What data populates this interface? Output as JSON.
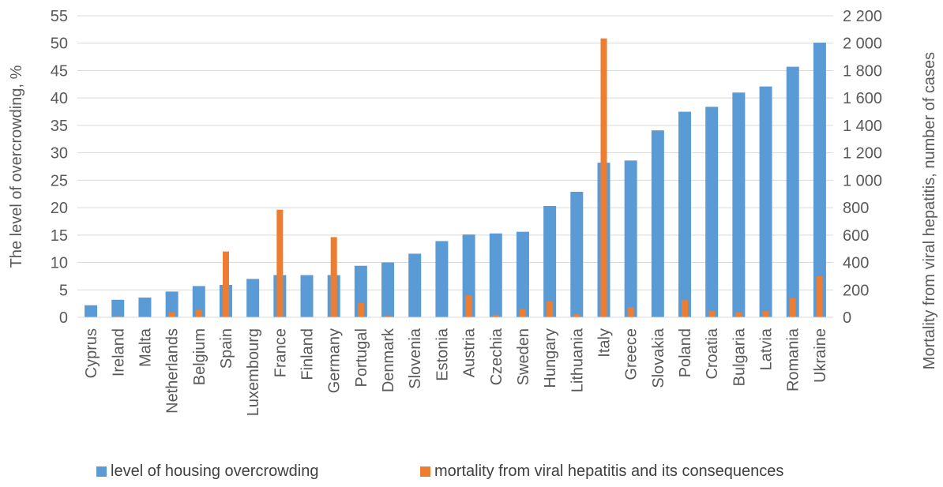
{
  "chart_data": {
    "type": "bar",
    "categories": [
      "Cyprus",
      "Ireland",
      "Malta",
      "Netherlands",
      "Belgium",
      "Spain",
      "Luxembourg",
      "France",
      "Finland",
      "Germany",
      "Portugal",
      "Denmark",
      "Slovenia",
      "Estonia",
      "Austria",
      "Czechia",
      "Sweden",
      "Hungary",
      "Lithuania",
      "Italy",
      "Greece",
      "Slovakia",
      "Poland",
      "Croatia",
      "Bulgaria",
      "Latvia",
      "Romania",
      "Ukraine"
    ],
    "series": [
      {
        "name": "level of housing overcrowding",
        "axis": "left",
        "color": "#5b9bd5",
        "values": [
          2.2,
          3.2,
          3.6,
          4.7,
          5.7,
          5.9,
          7.0,
          7.7,
          7.7,
          7.7,
          9.4,
          10.0,
          11.6,
          13.9,
          15.1,
          15.3,
          15.6,
          20.3,
          22.9,
          28.2,
          28.6,
          34.1,
          37.5,
          38.4,
          41.0,
          42.1,
          45.7,
          50.1
        ]
      },
      {
        "name": "mortality from viral hepatitis and its consequences",
        "axis": "right",
        "color": "#ed7d31",
        "values": [
          0,
          8,
          0,
          35,
          55,
          480,
          0,
          785,
          0,
          585,
          105,
          10,
          0,
          0,
          160,
          18,
          60,
          115,
          22,
          2035,
          75,
          0,
          125,
          45,
          35,
          45,
          140,
          300
        ]
      }
    ],
    "ylabel": "The level of overcrowding, %",
    "ylabel_right": "Mortality from viral hepatitis, number of cases",
    "ylim": [
      0,
      55
    ],
    "yticks": [
      "0",
      "5",
      "10",
      "15",
      "20",
      "25",
      "30",
      "35",
      "40",
      "45",
      "50",
      "55"
    ],
    "ylim_right": [
      0,
      2200
    ],
    "yticks_right": [
      "0",
      "200",
      "400",
      "600",
      "800",
      "1 000",
      "1 200",
      "1 400",
      "1 600",
      "1 800",
      "2 000",
      "2 200"
    ],
    "grid": true,
    "legend_position": "bottom"
  },
  "legend": {
    "item1": "level of housing overcrowding",
    "item2": "mortality from viral hepatitis and its consequences"
  }
}
